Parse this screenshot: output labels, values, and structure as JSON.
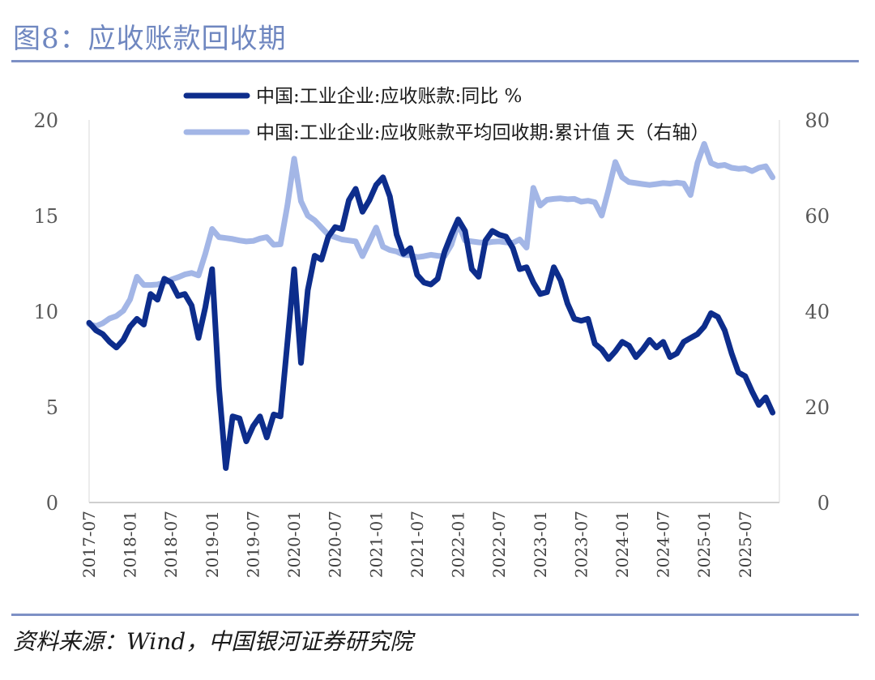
{
  "header": {
    "title": "图8：应收账款回收期"
  },
  "footer": {
    "source": "资料来源：Wind，中国银河证券研究院"
  },
  "colors": {
    "dark_series": "#0d2d8c",
    "light_series": "#a3b6e6",
    "rule": "#7d90c5",
    "title": "#6f87c0"
  },
  "chart_data": {
    "type": "line",
    "title": "",
    "left_axis": {
      "range": [
        0,
        20
      ],
      "ticks": [
        "0",
        "5",
        "10",
        "15",
        "20"
      ]
    },
    "right_axis": {
      "range": [
        0,
        80
      ],
      "ticks": [
        "0",
        "20",
        "40",
        "60",
        "80"
      ]
    },
    "x_tick_labels": [
      "2017-07",
      "2018-01",
      "2018-07",
      "2019-01",
      "2019-07",
      "2020-01",
      "2020-07",
      "2021-01",
      "2021-07",
      "2022-01",
      "2022-07",
      "2023-01",
      "2023-07",
      "2024-01",
      "2024-07",
      "2025-01",
      "2025-07"
    ],
    "x_start": "2017-07",
    "x_end": "2025-12",
    "series": [
      {
        "name": "中国:工业企业:应收账款:同比 %",
        "axis": "left",
        "start": "2017-07",
        "values": [
          9.4,
          9.0,
          8.8,
          8.4,
          8.1,
          8.5,
          9.2,
          9.6,
          9.3,
          10.9,
          10.6,
          11.7,
          11.5,
          10.8,
          10.9,
          10.3,
          8.6,
          10.2,
          12.2,
          6.0,
          1.8,
          4.5,
          4.4,
          3.2,
          4.0,
          4.5,
          3.4,
          4.6,
          4.5,
          8.3,
          12.2,
          7.3,
          11.1,
          12.9,
          12.7,
          13.9,
          14.4,
          14.3,
          15.8,
          16.4,
          15.2,
          15.8,
          16.6,
          17.0,
          16.0,
          14.0,
          13.0,
          13.3,
          11.9,
          11.5,
          11.4,
          11.7,
          13.1,
          14.0,
          14.8,
          14.2,
          12.2,
          11.8,
          13.7,
          14.2,
          14.0,
          13.9,
          13.3,
          12.2,
          12.3,
          11.5,
          10.9,
          11.0,
          12.3,
          11.6,
          10.4,
          9.6,
          9.5,
          9.6,
          8.3,
          8.0,
          7.5,
          7.9,
          8.4,
          8.2,
          7.6,
          8.0,
          8.5,
          8.1,
          8.4,
          7.6,
          7.8,
          8.4,
          8.6,
          8.8,
          9.2,
          9.9,
          9.7,
          9.0,
          7.8,
          6.8,
          6.6,
          5.8,
          5.1,
          5.5,
          4.7
        ]
      },
      {
        "name": "中国:工业企业:应收账款平均回收期:累计值 天（右轴）",
        "axis": "right",
        "start": "2017-07",
        "values": [
          37.3,
          36.9,
          37.5,
          38.5,
          39.0,
          40.1,
          42.5,
          47.2,
          45.5,
          45.5,
          45.6,
          46.0,
          46.6,
          47.1,
          47.7,
          48.0,
          47.5,
          52.0,
          57.2,
          55.5,
          55.3,
          55.1,
          54.8,
          54.6,
          54.7,
          55.2,
          55.5,
          53.9,
          54.0,
          62.0,
          71.9,
          63.0,
          60.0,
          59.0,
          57.5,
          56.0,
          55.5,
          55.0,
          54.8,
          54.6,
          51.5,
          54.5,
          57.5,
          53.5,
          52.8,
          52.5,
          51.8,
          51.7,
          51.3,
          51.5,
          51.8,
          51.6,
          51.5,
          53.9,
          58.4,
          54.8,
          54.6,
          54.4,
          54.3,
          54.5,
          54.6,
          54.4,
          54.3,
          55.0,
          53.3,
          65.8,
          62.1,
          63.3,
          63.5,
          63.6,
          63.4,
          63.5,
          62.9,
          63.1,
          62.8,
          60.0,
          65.4,
          71.2,
          68.0,
          67.0,
          66.8,
          66.6,
          66.4,
          66.6,
          66.8,
          66.7,
          66.9,
          66.7,
          64.3,
          71.0,
          75.0,
          71.0,
          70.4,
          70.6,
          70.0,
          69.8,
          69.9,
          69.3,
          70.0,
          70.3,
          68.0
        ]
      }
    ]
  }
}
